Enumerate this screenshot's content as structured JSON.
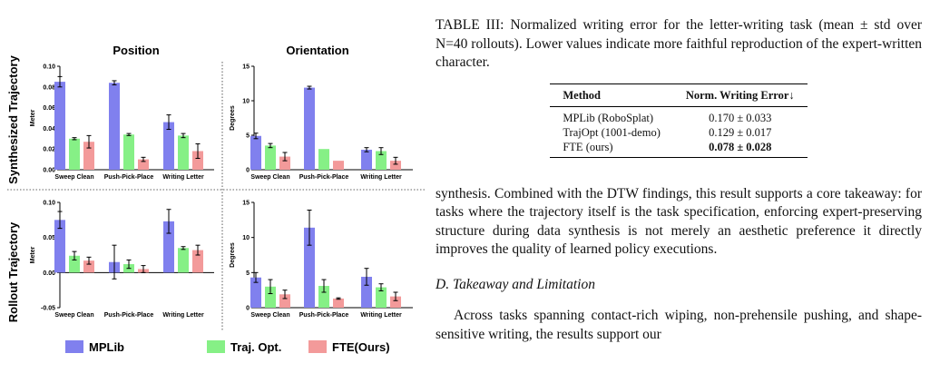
{
  "figure": {
    "column_titles": [
      "Position",
      "Orientation"
    ],
    "row_titles": [
      "Synthesized Trajectory",
      "Rollout Trajectory"
    ],
    "legend": [
      {
        "label": "MPLib",
        "color": "#8080ee"
      },
      {
        "label": "Traj. Opt.",
        "color": "#86f086"
      },
      {
        "label": "FTE(Ours)",
        "color": "#f39a9a"
      }
    ]
  },
  "chart_data": [
    {
      "type": "bar",
      "title": "Position",
      "ylabel": "Meter",
      "categories": [
        "Sweep Clean",
        "Push-Pick-Place",
        "Writing Letter"
      ],
      "ylim": [
        0,
        0.1
      ],
      "yticks": [
        "0.00",
        "0.02",
        "0.04",
        "0.06",
        "0.08",
        "0.10"
      ],
      "ytick_values": [
        0,
        0.02,
        0.04,
        0.06,
        0.08,
        0.1
      ],
      "series": [
        {
          "name": "MPLib",
          "values": [
            0.085,
            0.084,
            0.046
          ],
          "errors": [
            0.005,
            0.002,
            0.007
          ]
        },
        {
          "name": "Traj. Opt.",
          "values": [
            0.03,
            0.034,
            0.033
          ],
          "errors": [
            0.001,
            0.001,
            0.002
          ]
        },
        {
          "name": "FTE(Ours)",
          "values": [
            0.027,
            0.01,
            0.018
          ],
          "errors": [
            0.006,
            0.002,
            0.007
          ]
        }
      ]
    },
    {
      "type": "bar",
      "title": "Orientation",
      "ylabel": "Degrees",
      "categories": [
        "Sweep Clean",
        "Push-Pick-Place",
        "Writing Letter"
      ],
      "ylim": [
        0,
        15
      ],
      "yticks": [
        "0",
        "5",
        "10",
        "15"
      ],
      "ytick_values": [
        0,
        5,
        10,
        15
      ],
      "series": [
        {
          "name": "MPLib",
          "values": [
            4.9,
            11.9,
            2.9
          ],
          "errors": [
            0.4,
            0.2,
            0.3
          ]
        },
        {
          "name": "Traj. Opt.",
          "values": [
            3.5,
            3.0,
            2.7
          ],
          "errors": [
            0.3,
            0.0,
            0.5
          ]
        },
        {
          "name": "FTE(Ours)",
          "values": [
            1.9,
            1.3,
            1.3
          ],
          "errors": [
            0.6,
            0.0,
            0.5
          ]
        }
      ]
    },
    {
      "type": "bar",
      "title": "Position",
      "ylabel": "Meter",
      "categories": [
        "Sweep Clean",
        "Push-Pick-Place",
        "Writing Letter"
      ],
      "ylim": [
        -0.05,
        0.1
      ],
      "yticks": [
        "-0.05",
        "0.00",
        "0.05",
        "0.10"
      ],
      "ytick_values": [
        -0.05,
        0,
        0.05,
        0.1
      ],
      "series": [
        {
          "name": "MPLib",
          "values": [
            0.075,
            0.015,
            0.073
          ],
          "errors": [
            0.012,
            0.024,
            0.017
          ]
        },
        {
          "name": "Traj. Opt.",
          "values": [
            0.024,
            0.012,
            0.035
          ],
          "errors": [
            0.006,
            0.006,
            0.002
          ]
        },
        {
          "name": "FTE(Ours)",
          "values": [
            0.017,
            0.005,
            0.032
          ],
          "errors": [
            0.005,
            0.005,
            0.007
          ]
        }
      ]
    },
    {
      "type": "bar",
      "title": "Orientation",
      "ylabel": "Degrees",
      "categories": [
        "Sweep Clean",
        "Push-Pick-Place",
        "Writing Letter"
      ],
      "ylim": [
        0,
        15
      ],
      "yticks": [
        "0",
        "5",
        "10",
        "15"
      ],
      "ytick_values": [
        0,
        5,
        10,
        15
      ],
      "series": [
        {
          "name": "MPLib",
          "values": [
            4.3,
            11.4,
            4.4
          ],
          "errors": [
            0.7,
            2.5,
            1.2
          ]
        },
        {
          "name": "Traj. Opt.",
          "values": [
            3.0,
            3.1,
            2.9
          ],
          "errors": [
            1.0,
            0.9,
            0.5
          ]
        },
        {
          "name": "FTE(Ours)",
          "values": [
            1.9,
            1.3,
            1.6
          ],
          "errors": [
            0.6,
            0.1,
            0.6
          ]
        }
      ]
    }
  ],
  "text": {
    "caption": "TABLE III: Normalized writing error for the letter-writing task (mean ± std over N=40 rollouts). Lower values indicate more faithful reproduction of the expert-written character.",
    "table": {
      "headers": [
        "Method",
        "Norm. Writing Error↓"
      ],
      "rows": [
        {
          "method": "MPLib (RoboSplat)",
          "value": "0.170 ± 0.033"
        },
        {
          "method": "TrajOpt (1001-demo)",
          "value": "0.129 ± 0.017"
        },
        {
          "method": "FTE (ours)",
          "value": "0.078 ± 0.028"
        }
      ]
    },
    "paragraph1": "synthesis. Combined with the DTW findings, this result supports a core takeaway: for tasks where the trajectory itself is the task specification, enforcing expert-preserving structure during data synthesis is not merely an aesthetic preference it directly improves the quality of learned policy executions.",
    "section_heading": "D. Takeaway and Limitation",
    "paragraph2": "Across tasks spanning contact-rich wiping, non-prehensile pushing, and shape-sensitive writing, the results support our"
  }
}
